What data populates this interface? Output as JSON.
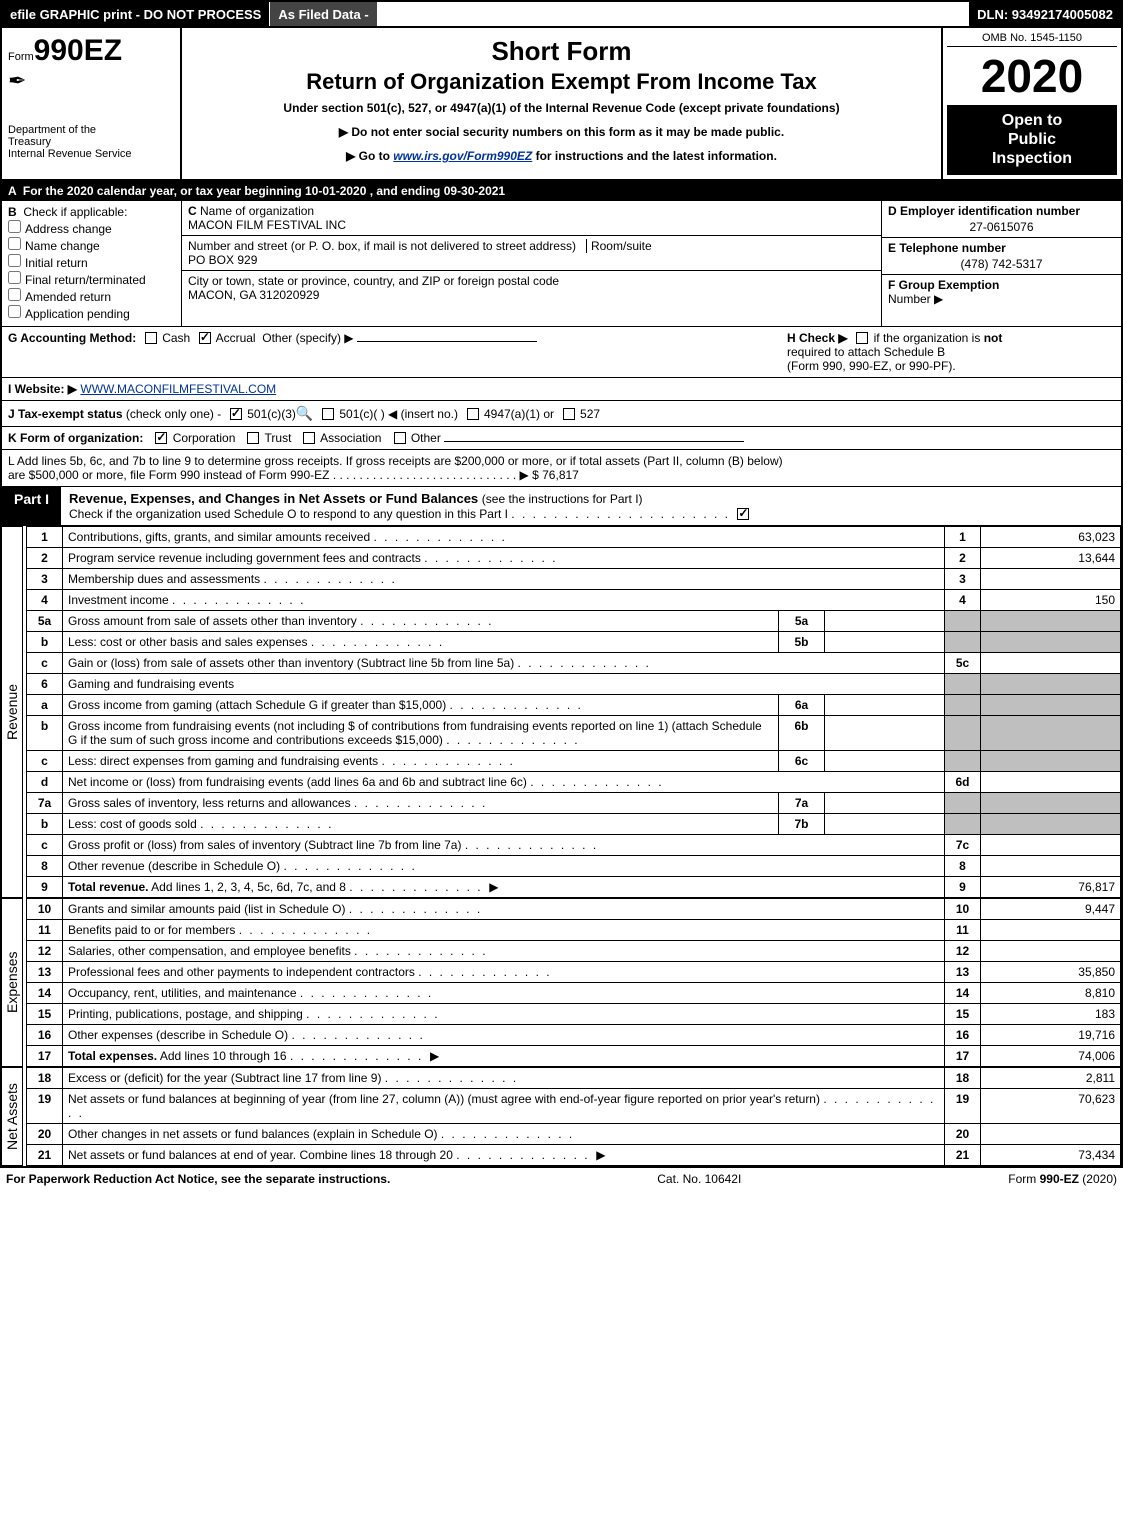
{
  "topbar": {
    "efile_text": "efile GRAPHIC print - DO NOT PROCESS",
    "as_filed": "As Filed Data -",
    "dln": "DLN: 93492174005082"
  },
  "header": {
    "form_prefix": "Form",
    "form_num": "990EZ",
    "dept1": "Department of the",
    "dept2": "Treasury",
    "dept3": "Internal Revenue Service",
    "title1": "Short Form",
    "title2": "Return of Organization Exempt From Income Tax",
    "subtitle": "Under section 501(c), 527, or 4947(a)(1) of the Internal Revenue Code (except private foundations)",
    "arrow1": "▶ Do not enter social security numbers on this form as it may be made public.",
    "arrow2_pre": "▶ Go to ",
    "arrow2_link": "www.irs.gov/Form990EZ",
    "arrow2_post": " for instructions and the latest information.",
    "omb": "OMB No. 1545-1150",
    "year": "2020",
    "inspection1": "Open to",
    "inspection2": "Public",
    "inspection3": "Inspection"
  },
  "line_A": "For the 2020 calendar year, or tax year beginning 10-01-2020 , and ending 09-30-2021",
  "section_B": {
    "label": "Check if applicable:",
    "opts": [
      "Address change",
      "Name change",
      "Initial return",
      "Final return/terminated",
      "Amended return",
      "Application pending"
    ],
    "C_label": "Name of organization",
    "C_value": "MACON FILM FESTIVAL INC",
    "addr_label": "Number and street (or P. O. box, if mail is not delivered to street address)",
    "room_label": "Room/suite",
    "addr_value": "PO BOX 929",
    "city_label": "City or town, state or province, country, and ZIP or foreign postal code",
    "city_value": "MACON, GA  312020929",
    "D_label": "D Employer identification number",
    "D_value": "27-0615076",
    "E_label": "E Telephone number",
    "E_value": "(478) 742-5317",
    "F_label": "F Group Exemption",
    "F_label2": "Number   ▶"
  },
  "line_G": {
    "left_label": "G Accounting Method:",
    "cash": "Cash",
    "accrual": "Accrual",
    "other": "Other (specify) ▶",
    "H_label": "H   Check ▶",
    "H_text1": "if the organization is",
    "H_not": "not",
    "H_text2": "required to attach Schedule B",
    "H_text3": "(Form 990, 990-EZ, or 990-PF)."
  },
  "line_I": {
    "label": "I Website: ▶",
    "value": "WWW.MACONFILMFESTIVAL.COM"
  },
  "line_J": {
    "label": "J Tax-exempt status",
    "text": "(check only one) -",
    "opt1": "501(c)(3)",
    "opt2": "501(c)(  )  ◀ (insert no.)",
    "opt3": "4947(a)(1) or",
    "opt4": "527"
  },
  "line_K": {
    "label": "K Form of organization:",
    "opts": [
      "Corporation",
      "Trust",
      "Association",
      "Other"
    ]
  },
  "line_L": {
    "text1": "L Add lines 5b, 6c, and 7b to line 9 to determine gross receipts. If gross receipts are $200,000 or more, or if total assets (Part II, column (B) below)",
    "text2": "are $500,000 or more, file Form 990 instead of Form 990-EZ",
    "dots": ".  .  .  .  .  .  .  .  .  .  .  .  .  .  .  .  .  .  .  .  .  .  .  .  .  .  .  . ▶",
    "value": "$ 76,817"
  },
  "part1": {
    "tab": "Part I",
    "title": "Revenue, Expenses, and Changes in Net Assets or Fund Balances",
    "subtitle": "(see the instructions for Part I)",
    "check_line": "Check if the organization used Schedule O to respond to any question in this Part I"
  },
  "revenue": {
    "label": "Revenue",
    "rows": [
      {
        "n": "1",
        "desc": "Contributions, gifts, grants, and similar amounts received",
        "rn": "1",
        "rv": "63,023"
      },
      {
        "n": "2",
        "desc": "Program service revenue including government fees and contracts",
        "rn": "2",
        "rv": "13,644"
      },
      {
        "n": "3",
        "desc": "Membership dues and assessments",
        "rn": "3",
        "rv": ""
      },
      {
        "n": "4",
        "desc": "Investment income",
        "rn": "4",
        "rv": "150"
      },
      {
        "n": "5a",
        "desc": "Gross amount from sale of assets other than inventory",
        "sn": "5a",
        "sv": ""
      },
      {
        "n": "b",
        "desc": "Less: cost or other basis and sales expenses",
        "sn": "5b",
        "sv": ""
      },
      {
        "n": "c",
        "desc": "Gain or (loss) from sale of assets other than inventory (Subtract line 5b from line 5a)",
        "rn": "5c",
        "rv": ""
      },
      {
        "n": "6",
        "desc": "Gaming and fundraising events"
      },
      {
        "n": "a",
        "desc": "Gross income from gaming (attach Schedule G if greater than $15,000)",
        "sn": "6a",
        "sv": ""
      },
      {
        "n": "b",
        "desc": "Gross income from fundraising events (not including $                          of contributions from fundraising events reported on line 1) (attach Schedule G if the sum of such gross income and contributions exceeds $15,000)",
        "sn": "6b",
        "sv": ""
      },
      {
        "n": "c",
        "desc": "Less: direct expenses from gaming and fundraising events",
        "sn": "6c",
        "sv": ""
      },
      {
        "n": "d",
        "desc": "Net income or (loss) from fundraising events (add lines 6a and 6b and subtract line 6c)",
        "rn": "6d",
        "rv": ""
      },
      {
        "n": "7a",
        "desc": "Gross sales of inventory, less returns and allowances",
        "sn": "7a",
        "sv": ""
      },
      {
        "n": "b",
        "desc": "Less: cost of goods sold",
        "sn": "7b",
        "sv": ""
      },
      {
        "n": "c",
        "desc": "Gross profit or (loss) from sales of inventory (Subtract line 7b from line 7a)",
        "rn": "7c",
        "rv": ""
      },
      {
        "n": "8",
        "desc": "Other revenue (describe in Schedule O)",
        "rn": "8",
        "rv": ""
      },
      {
        "n": "9",
        "desc": "Total revenue. Add lines 1, 2, 3, 4, 5c, 6d, 7c, and 8",
        "rn": "9",
        "rv": "76,817",
        "bold": true,
        "arrow": true
      }
    ]
  },
  "expenses": {
    "label": "Expenses",
    "rows": [
      {
        "n": "10",
        "desc": "Grants and similar amounts paid (list in Schedule O)",
        "rn": "10",
        "rv": "9,447"
      },
      {
        "n": "11",
        "desc": "Benefits paid to or for members",
        "rn": "11",
        "rv": ""
      },
      {
        "n": "12",
        "desc": "Salaries, other compensation, and employee benefits",
        "rn": "12",
        "rv": ""
      },
      {
        "n": "13",
        "desc": "Professional fees and other payments to independent contractors",
        "rn": "13",
        "rv": "35,850"
      },
      {
        "n": "14",
        "desc": "Occupancy, rent, utilities, and maintenance",
        "rn": "14",
        "rv": "8,810"
      },
      {
        "n": "15",
        "desc": "Printing, publications, postage, and shipping",
        "rn": "15",
        "rv": "183"
      },
      {
        "n": "16",
        "desc": "Other expenses (describe in Schedule O)",
        "rn": "16",
        "rv": "19,716"
      },
      {
        "n": "17",
        "desc": "Total expenses. Add lines 10 through 16",
        "rn": "17",
        "rv": "74,006",
        "bold": true,
        "arrow": true
      }
    ]
  },
  "netassets": {
    "label": "Net Assets",
    "rows": [
      {
        "n": "18",
        "desc": "Excess or (deficit) for the year (Subtract line 17 from line 9)",
        "rn": "18",
        "rv": "2,811"
      },
      {
        "n": "19",
        "desc": "Net assets or fund balances at beginning of year (from line 27, column (A)) (must agree with end-of-year figure reported on prior year's return)",
        "rn": "19",
        "rv": "70,623"
      },
      {
        "n": "20",
        "desc": "Other changes in net assets or fund balances (explain in Schedule O)",
        "rn": "20",
        "rv": ""
      },
      {
        "n": "21",
        "desc": "Net assets or fund balances at end of year. Combine lines 18 through 20",
        "rn": "21",
        "rv": "73,434",
        "arrow": true
      }
    ]
  },
  "footer": {
    "left": "For Paperwork Reduction Act Notice, see the separate instructions.",
    "mid": "Cat. No. 10642I",
    "right_pre": "Form ",
    "right_form": "990-EZ",
    "right_post": " (2020)"
  }
}
